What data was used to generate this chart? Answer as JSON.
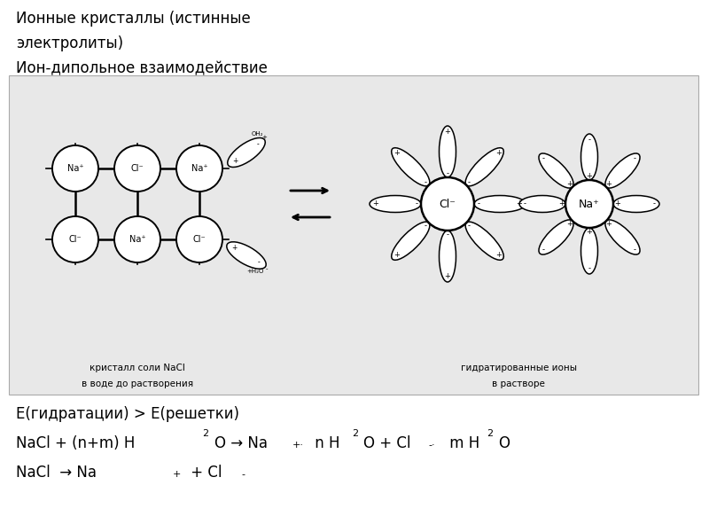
{
  "title1": "Ионные кристаллы (истинные",
  "title2": "электролиты)",
  "title3": "Ион-дипольное взаимодействие",
  "bg_color": "#ffffff",
  "diagram_bg": "#e8e8e8",
  "line1": "E(гидратации) > E(решетки)",
  "label_left1": "кристалл соли NaCl",
  "label_left2": "в воде до растворения",
  "label_right1": "гидратированные ионы",
  "label_right2": "в растворе"
}
